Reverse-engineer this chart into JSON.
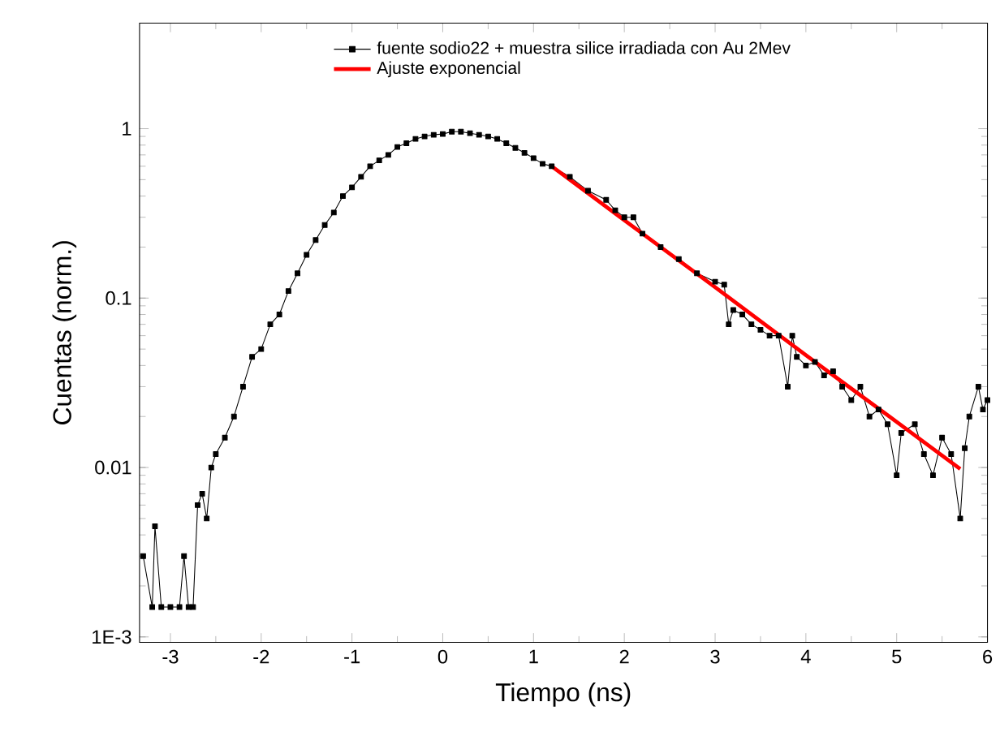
{
  "chart_data": {
    "type": "line",
    "xlabel": "Tiempo (ns)",
    "ylabel": "Cuentas (norm.)",
    "xlim": [
      -3.34,
      6.0
    ],
    "xticks": [
      -3,
      -2,
      -1,
      0,
      1,
      2,
      3,
      4,
      5,
      6
    ],
    "ylim": [
      0.00093,
      4.2
    ],
    "yticks": [
      {
        "value": 0.001,
        "label": "1E-3"
      },
      0.01,
      0.1,
      1
    ],
    "log": "y",
    "grid": false,
    "legend": "top",
    "marker": "square",
    "line_style": "solid",
    "series": [
      {
        "name": "fuente sodio22 + muestra silice irradiada con Au 2Mev",
        "color": "#000000",
        "x": [
          -3.3,
          -3.2,
          -3.17,
          -3.1,
          -3.0,
          -2.9,
          -2.85,
          -2.8,
          -2.75,
          -2.7,
          -2.65,
          -2.6,
          -2.55,
          -2.5,
          -2.4,
          -2.3,
          -2.2,
          -2.1,
          -2.0,
          -1.9,
          -1.8,
          -1.7,
          -1.6,
          -1.5,
          -1.4,
          -1.3,
          -1.2,
          -1.1,
          -1.0,
          -0.9,
          -0.8,
          -0.7,
          -0.6,
          -0.5,
          -0.4,
          -0.3,
          -0.2,
          -0.1,
          0.0,
          0.1,
          0.2,
          0.3,
          0.4,
          0.5,
          0.6,
          0.7,
          0.8,
          0.9,
          1.0,
          1.1,
          1.2,
          1.4,
          1.6,
          1.8,
          1.9,
          2.0,
          2.1,
          2.2,
          2.4,
          2.6,
          2.8,
          3.0,
          3.1,
          3.15,
          3.2,
          3.3,
          3.4,
          3.5,
          3.6,
          3.7,
          3.8,
          3.85,
          3.9,
          4.0,
          4.1,
          4.2,
          4.3,
          4.4,
          4.5,
          4.6,
          4.7,
          4.8,
          4.9,
          5.0,
          5.05,
          5.2,
          5.3,
          5.4,
          5.5,
          5.6,
          5.7,
          5.75,
          5.8,
          5.9,
          5.95,
          6.0
        ],
        "values": [
          0.003,
          0.0015,
          0.0045,
          0.0015,
          0.0015,
          0.0015,
          0.003,
          0.0015,
          0.0015,
          0.006,
          0.007,
          0.005,
          0.01,
          0.012,
          0.015,
          0.02,
          0.03,
          0.045,
          0.05,
          0.07,
          0.08,
          0.11,
          0.14,
          0.18,
          0.22,
          0.27,
          0.32,
          0.4,
          0.45,
          0.52,
          0.6,
          0.65,
          0.7,
          0.78,
          0.82,
          0.87,
          0.9,
          0.92,
          0.93,
          0.96,
          0.96,
          0.94,
          0.92,
          0.9,
          0.87,
          0.82,
          0.77,
          0.72,
          0.67,
          0.62,
          0.6,
          0.52,
          0.43,
          0.38,
          0.33,
          0.3,
          0.3,
          0.24,
          0.2,
          0.17,
          0.14,
          0.125,
          0.12,
          0.07,
          0.085,
          0.08,
          0.07,
          0.065,
          0.06,
          0.06,
          0.03,
          0.06,
          0.045,
          0.04,
          0.042,
          0.035,
          0.037,
          0.03,
          0.025,
          0.03,
          0.02,
          0.022,
          0.018,
          0.009,
          0.016,
          0.018,
          0.012,
          0.009,
          0.015,
          0.012,
          0.005,
          0.013,
          0.02,
          0.03,
          0.022,
          0.025
        ]
      },
      {
        "name": "Ajuste exponencial",
        "color": "#ff0000",
        "marker": "none",
        "x": [
          1.2,
          2.0,
          3.0,
          4.0,
          5.0,
          5.7
        ],
        "values": [
          0.6,
          0.288,
          0.116,
          0.046,
          0.0186,
          0.0098
        ]
      }
    ]
  }
}
